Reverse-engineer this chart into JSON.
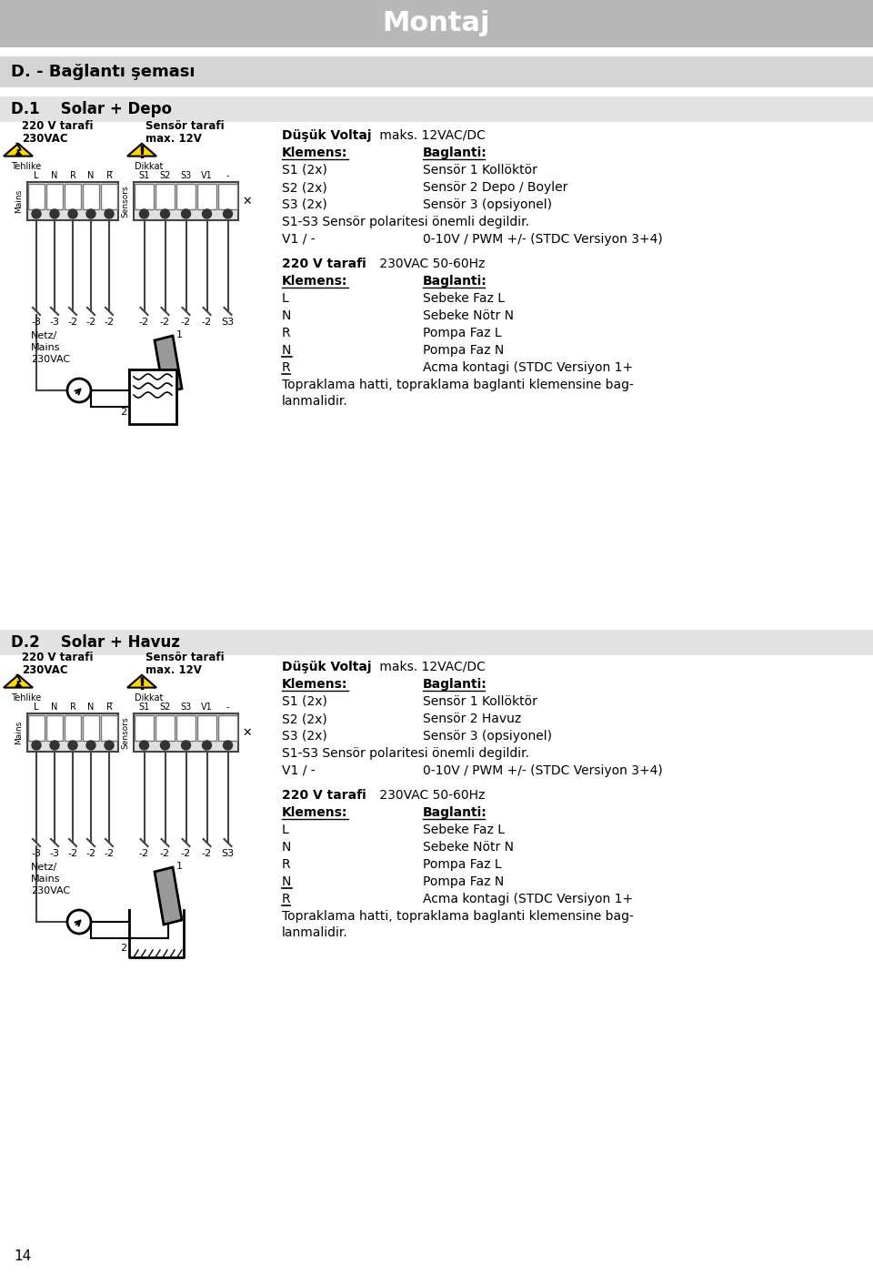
{
  "page_title": "Montaj",
  "page_title_bg": "#c0c0c0",
  "page_bg": "#ffffff",
  "section_header_bg": "#d8d8d8",
  "section_d_title": "D. - Bağlantı şeması",
  "subsection_d1": "D.1    Solar + Depo",
  "subsection_d2": "D.2    Solar + Havuz",
  "page_number": "14",
  "d1_sensor_rows": [
    [
      "S1 (2x)",
      "Sensör 1 Kollöktör"
    ],
    [
      "S2 (2x)",
      "Sensör 2 Depo / Boyler"
    ],
    [
      "S3 (2x)",
      "Sensör 3 (opsiyonel)"
    ]
  ],
  "d1_s1s3_note": "S1-S3 Sensör polaritesi önemli degildir.",
  "d1_v1_row": [
    "V1 / -",
    "0-10V / PWM +/- (STDC Versiyon 3+4)"
  ],
  "d1_220v_rows": [
    [
      "L",
      "Sebeke Faz L"
    ],
    [
      "N",
      "Sebeke Nötr N"
    ],
    [
      "R",
      "Pompa Faz L"
    ],
    [
      "N",
      "Pompa Faz N"
    ],
    [
      "R",
      "Acma kontagi (STDC Versiyon 1+"
    ]
  ],
  "d1_topraklama": "Topraklama hatti, topraklama baglanti klemensine bag-\nlanmalidir.",
  "d2_sensor_rows": [
    [
      "S1 (2x)",
      "Sensör 1 Kollöktör"
    ],
    [
      "S2 (2x)",
      "Sensör 2 Havuz"
    ],
    [
      "S3 (2x)",
      "Sensör 3 (opsiyonel)"
    ]
  ],
  "d2_s1s3_note": "S1-S3 Sensör polaritesi önemli degildir.",
  "d2_v1_row": [
    "V1 / -",
    "0-10V / PWM +/- (STDC Versiyon 3+4)"
  ],
  "d2_220v_rows": [
    [
      "L",
      "Sebeke Faz L"
    ],
    [
      "N",
      "Sebeke Nötr N"
    ],
    [
      "R",
      "Pompa Faz L"
    ],
    [
      "N",
      "Pompa Faz N"
    ],
    [
      "R",
      "Acma kontagi (STDC Versiyon 1+"
    ]
  ],
  "d2_topraklama": "Topraklama hatti, topraklama baglanti klemensine bag-\nlanmalidir."
}
